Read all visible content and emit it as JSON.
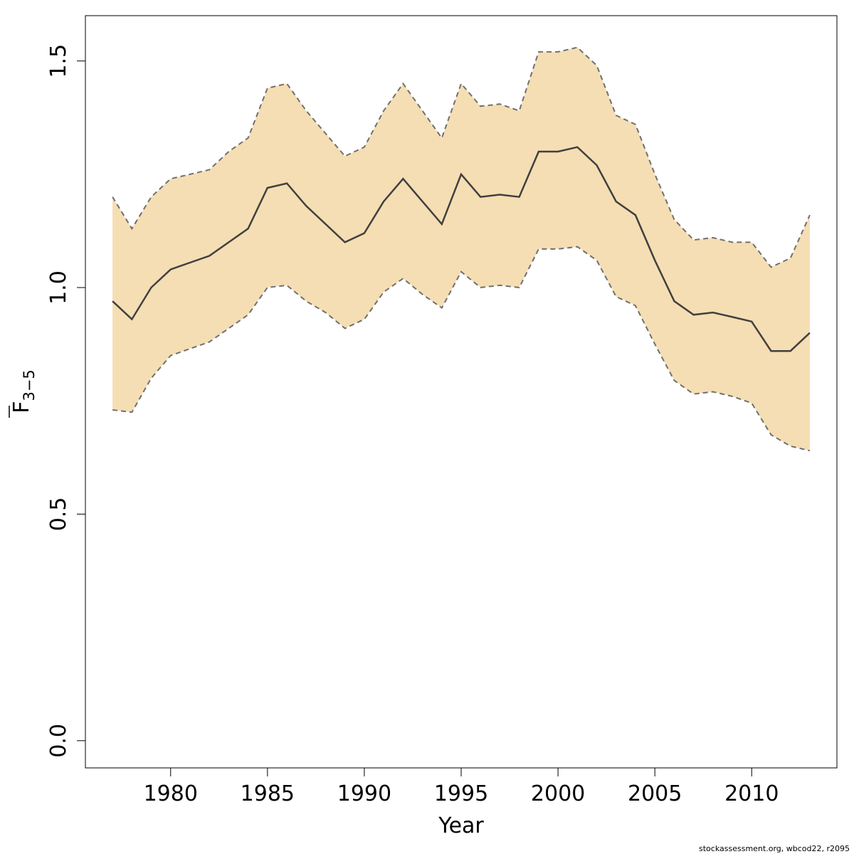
{
  "chart_data": {
    "type": "line",
    "xlabel": "Year",
    "ylabel_main": "F",
    "ylabel_sub": "3−5",
    "ylabel_overline": true,
    "xlim": [
      1975.6,
      2014.4
    ],
    "ylim": [
      -0.06,
      1.6
    ],
    "xticks": [
      1980,
      1985,
      1990,
      1995,
      2000,
      2005,
      2010
    ],
    "xtick_labels": [
      "1980",
      "1985",
      "1990",
      "1995",
      "2000",
      "2005",
      "2010"
    ],
    "yticks": [
      0.0,
      0.5,
      1.0,
      1.5
    ],
    "ytick_labels": [
      "0.0",
      "0.5",
      "1.0",
      "1.5"
    ],
    "grid": false,
    "legend": "none",
    "colors": {
      "band_fill": "#F5DEB3",
      "bound_line": "#707070",
      "estimate_line": "#404040",
      "frame": "#000000"
    },
    "x": [
      1977,
      1978,
      1979,
      1980,
      1981,
      1982,
      1983,
      1984,
      1985,
      1986,
      1987,
      1988,
      1989,
      1990,
      1991,
      1992,
      1993,
      1994,
      1995,
      1996,
      1997,
      1998,
      1999,
      2000,
      2001,
      2002,
      2003,
      2004,
      2005,
      2006,
      2007,
      2008,
      2009,
      2010,
      2011,
      2012,
      2013
    ],
    "series": [
      {
        "role": "estimate",
        "values": [
          0.97,
          0.93,
          1.0,
          1.04,
          1.055,
          1.07,
          1.1,
          1.13,
          1.22,
          1.23,
          1.18,
          1.14,
          1.1,
          1.12,
          1.19,
          1.24,
          1.19,
          1.14,
          1.25,
          1.2,
          1.205,
          1.2,
          1.3,
          1.3,
          1.31,
          1.27,
          1.19,
          1.16,
          1.06,
          0.97,
          0.94,
          0.945,
          0.935,
          0.925,
          0.86,
          0.86,
          0.9
        ]
      },
      {
        "role": "upper",
        "values": [
          1.2,
          1.13,
          1.2,
          1.24,
          1.25,
          1.26,
          1.3,
          1.33,
          1.44,
          1.45,
          1.39,
          1.34,
          1.29,
          1.31,
          1.39,
          1.45,
          1.39,
          1.33,
          1.45,
          1.4,
          1.405,
          1.39,
          1.52,
          1.52,
          1.53,
          1.49,
          1.38,
          1.36,
          1.25,
          1.15,
          1.105,
          1.11,
          1.1,
          1.1,
          1.045,
          1.065,
          1.16
        ]
      },
      {
        "role": "lower",
        "values": [
          0.73,
          0.725,
          0.8,
          0.85,
          0.865,
          0.88,
          0.91,
          0.94,
          1.0,
          1.005,
          0.97,
          0.945,
          0.91,
          0.93,
          0.99,
          1.02,
          0.985,
          0.955,
          1.035,
          1.0,
          1.005,
          1.0,
          1.085,
          1.085,
          1.09,
          1.06,
          0.98,
          0.96,
          0.875,
          0.795,
          0.765,
          0.77,
          0.76,
          0.745,
          0.675,
          0.65,
          0.64
        ]
      }
    ]
  },
  "footer_text": "stockassessment.org, wbcod22, r2095"
}
